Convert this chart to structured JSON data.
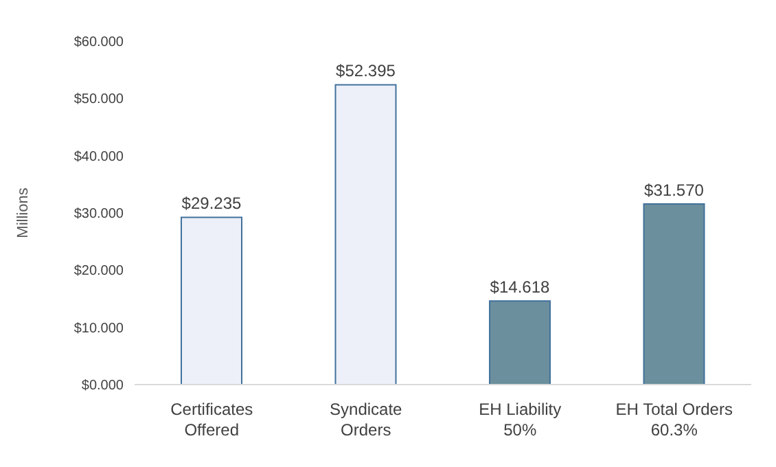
{
  "chart_data": {
    "type": "bar",
    "ylabel": "Millions",
    "categories": [
      "Certificates\nOffered",
      "Syndicate\nOrders",
      "EH Liability\n50%",
      "EH Total Orders\n60.3%"
    ],
    "values": [
      29.235,
      52.395,
      14.618,
      31.57
    ],
    "value_labels": [
      "$29.235",
      "$52.395",
      "$14.618",
      "$31.570"
    ],
    "colors": [
      "#edf0f8",
      "#edf0f8",
      "#6b8f9c",
      "#6b8f9c"
    ],
    "ylim": [
      0,
      60
    ],
    "yticks": [
      {
        "value": 0,
        "label": "$0.000"
      },
      {
        "value": 10,
        "label": "$10.000"
      },
      {
        "value": 20,
        "label": "$20.000"
      },
      {
        "value": 30,
        "label": "$30.000"
      },
      {
        "value": 40,
        "label": "$40.000"
      },
      {
        "value": 50,
        "label": "$50.000"
      },
      {
        "value": 60,
        "label": "$60.000"
      }
    ],
    "grid": false,
    "legend": false
  }
}
